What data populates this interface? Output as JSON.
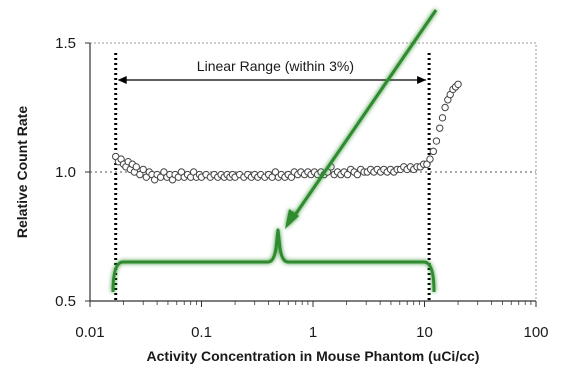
{
  "chart_data": {
    "type": "scatter",
    "title": "",
    "xlabel": "Activity Concentration in Mouse Phantom (uCi/cc)",
    "ylabel": "Relative Count Rate",
    "xscale": "log",
    "xlim": [
      0.01,
      100
    ],
    "ylim": [
      0.5,
      1.5
    ],
    "x_ticks": [
      0.01,
      0.1,
      1,
      10,
      100
    ],
    "x_tick_labels": [
      "0.01",
      "0.1",
      "1",
      "10",
      "100"
    ],
    "y_ticks": [
      0.5,
      1.0,
      1.5
    ],
    "y_tick_labels": [
      "0.5",
      "1.0",
      "1.5"
    ],
    "grid": false,
    "reference_line_y": 1.0,
    "linear_range_bounds": [
      0.017,
      11
    ],
    "annotation": "Linear Range (within 3%)",
    "colors": {
      "markers": "#444444",
      "bracket": "#2e8b2e",
      "axes": "#333333"
    },
    "series": [
      {
        "marker": "open-circle",
        "points": [
          [
            0.017,
            1.06
          ],
          [
            0.018,
            1.04
          ],
          [
            0.019,
            1.05
          ],
          [
            0.02,
            1.03
          ],
          [
            0.021,
            1.02
          ],
          [
            0.022,
            1.04
          ],
          [
            0.023,
            1.01
          ],
          [
            0.024,
            1.03
          ],
          [
            0.025,
            1.0
          ],
          [
            0.026,
            1.02
          ],
          [
            0.028,
            0.99
          ],
          [
            0.03,
            1.01
          ],
          [
            0.032,
            0.98
          ],
          [
            0.034,
            1.0
          ],
          [
            0.036,
            0.99
          ],
          [
            0.038,
            0.97
          ],
          [
            0.04,
            0.99
          ],
          [
            0.043,
            0.98
          ],
          [
            0.046,
            1.0
          ],
          [
            0.049,
            0.98
          ],
          [
            0.052,
            0.99
          ],
          [
            0.055,
            0.97
          ],
          [
            0.058,
            0.99
          ],
          [
            0.062,
            0.98
          ],
          [
            0.066,
            1.0
          ],
          [
            0.07,
            0.98
          ],
          [
            0.075,
            0.99
          ],
          [
            0.08,
            0.98
          ],
          [
            0.085,
            1.0
          ],
          [
            0.09,
            0.98
          ],
          [
            0.096,
            0.99
          ],
          [
            0.1,
            0.98
          ],
          [
            0.11,
            0.99
          ],
          [
            0.12,
            0.98
          ],
          [
            0.13,
            0.99
          ],
          [
            0.14,
            0.98
          ],
          [
            0.15,
            0.99
          ],
          [
            0.16,
            0.98
          ],
          [
            0.17,
            0.99
          ],
          [
            0.18,
            0.98
          ],
          [
            0.19,
            0.99
          ],
          [
            0.2,
            0.98
          ],
          [
            0.22,
            0.99
          ],
          [
            0.24,
            0.98
          ],
          [
            0.26,
            0.99
          ],
          [
            0.28,
            0.98
          ],
          [
            0.3,
            0.99
          ],
          [
            0.32,
            0.98
          ],
          [
            0.34,
            0.99
          ],
          [
            0.37,
            0.98
          ],
          [
            0.4,
            0.99
          ],
          [
            0.43,
            0.98
          ],
          [
            0.46,
            1.0
          ],
          [
            0.49,
            0.98
          ],
          [
            0.52,
            0.99
          ],
          [
            0.56,
            0.98
          ],
          [
            0.6,
            0.99
          ],
          [
            0.64,
            0.98
          ],
          [
            0.68,
            1.0
          ],
          [
            0.73,
            0.99
          ],
          [
            0.78,
            1.0
          ],
          [
            0.84,
            0.99
          ],
          [
            0.9,
            1.0
          ],
          [
            0.96,
            0.99
          ],
          [
            1.03,
            1.0
          ],
          [
            1.1,
            0.99
          ],
          [
            1.18,
            1.0
          ],
          [
            1.26,
            0.99
          ],
          [
            1.35,
            1.0
          ],
          [
            1.45,
            1.02
          ],
          [
            1.55,
            0.99
          ],
          [
            1.66,
            1.0
          ],
          [
            1.78,
            0.99
          ],
          [
            1.9,
            1.0
          ],
          [
            2.04,
            0.99
          ],
          [
            2.18,
            1.01
          ],
          [
            2.34,
            1.0
          ],
          [
            2.5,
            0.99
          ],
          [
            2.68,
            1.01
          ],
          [
            2.87,
            1.0
          ],
          [
            3.07,
            1.0
          ],
          [
            3.29,
            1.01
          ],
          [
            3.52,
            1.0
          ],
          [
            3.77,
            1.01
          ],
          [
            4.04,
            1.0
          ],
          [
            4.32,
            1.01
          ],
          [
            4.63,
            1.0
          ],
          [
            4.96,
            1.01
          ],
          [
            5.31,
            1.0
          ],
          [
            5.69,
            1.01
          ],
          [
            6.09,
            1.01
          ],
          [
            6.52,
            1.02
          ],
          [
            6.98,
            1.01
          ],
          [
            7.48,
            1.02
          ],
          [
            8.01,
            1.01
          ],
          [
            8.57,
            1.02
          ],
          [
            9.18,
            1.02
          ],
          [
            9.83,
            1.03
          ],
          [
            10.5,
            1.03
          ],
          [
            11.2,
            1.05
          ],
          [
            12.0,
            1.08
          ],
          [
            12.8,
            1.12
          ],
          [
            13.7,
            1.17
          ],
          [
            14.5,
            1.21
          ],
          [
            15.3,
            1.25
          ],
          [
            16.2,
            1.28
          ],
          [
            17.0,
            1.3
          ],
          [
            18.0,
            1.32
          ],
          [
            19.0,
            1.33
          ],
          [
            20.0,
            1.34
          ]
        ]
      }
    ]
  }
}
